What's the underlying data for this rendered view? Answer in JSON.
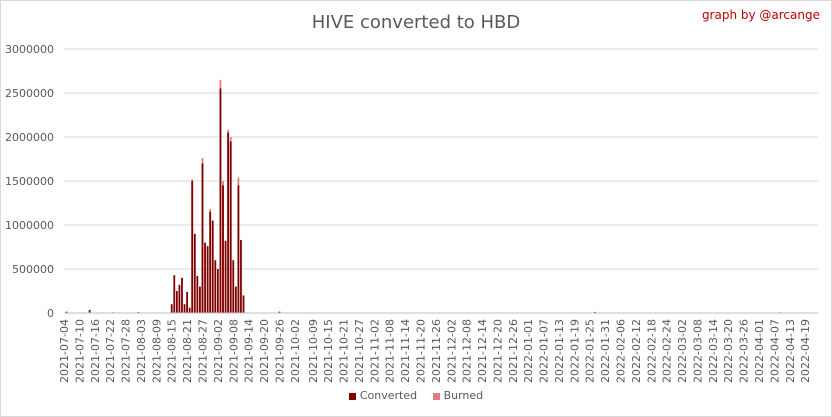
{
  "chart_data": {
    "type": "bar",
    "title": "HIVE converted to HBD",
    "credit": "graph by @arcange",
    "xlabel": "",
    "ylabel": "",
    "ylim": [
      0,
      3000000
    ],
    "yticks": [
      0,
      500000,
      1000000,
      1500000,
      2000000,
      2500000,
      3000000
    ],
    "grid": true,
    "legend_position": "bottom",
    "x_start": "2021-07-04",
    "x_end": "2022-04-24",
    "xtick_labels": [
      "2021-07-04",
      "2021-07-10",
      "2021-07-16",
      "2021-07-22",
      "2021-07-28",
      "2021-08-03",
      "2021-08-09",
      "2021-08-15",
      "2021-08-21",
      "2021-08-27",
      "2021-09-02",
      "2021-09-08",
      "2021-09-14",
      "2021-09-20",
      "2021-09-26",
      "2021-10-02",
      "2021-10-09",
      "2021-10-15",
      "2021-10-21",
      "2021-10-27",
      "2021-11-02",
      "2021-11-08",
      "2021-11-14",
      "2021-11-20",
      "2021-11-26",
      "2021-12-02",
      "2021-12-08",
      "2021-12-14",
      "2021-12-20",
      "2021-12-26",
      "2022-01-01",
      "2022-01-07",
      "2022-01-13",
      "2022-01-19",
      "2022-01-25",
      "2022-01-31",
      "2022-02-06",
      "2022-02-12",
      "2022-02-18",
      "2022-02-24",
      "2022-03-02",
      "2022-03-08",
      "2022-03-14",
      "2022-03-20",
      "2022-03-26",
      "2022-04-01",
      "2022-04-07",
      "2022-04-13",
      "2022-04-19"
    ],
    "series": [
      {
        "name": "Converted",
        "color": "#7f0000",
        "points": [
          [
            "2021-07-05",
            15000
          ],
          [
            "2021-07-14",
            35000
          ],
          [
            "2021-07-23",
            8000
          ],
          [
            "2021-08-02",
            10000
          ],
          [
            "2021-08-15",
            100000
          ],
          [
            "2021-08-16",
            430000
          ],
          [
            "2021-08-17",
            250000
          ],
          [
            "2021-08-18",
            320000
          ],
          [
            "2021-08-19",
            400000
          ],
          [
            "2021-08-20",
            100000
          ],
          [
            "2021-08-21",
            240000
          ],
          [
            "2021-08-22",
            60000
          ],
          [
            "2021-08-23",
            1500000
          ],
          [
            "2021-08-24",
            900000
          ],
          [
            "2021-08-25",
            420000
          ],
          [
            "2021-08-26",
            300000
          ],
          [
            "2021-08-27",
            1700000
          ],
          [
            "2021-08-28",
            800000
          ],
          [
            "2021-08-29",
            760000
          ],
          [
            "2021-08-30",
            1150000
          ],
          [
            "2021-08-31",
            1050000
          ],
          [
            "2021-09-01",
            600000
          ],
          [
            "2021-09-02",
            500000
          ],
          [
            "2021-09-03",
            2550000
          ],
          [
            "2021-09-04",
            1450000
          ],
          [
            "2021-09-05",
            820000
          ],
          [
            "2021-09-06",
            2050000
          ],
          [
            "2021-09-07",
            1950000
          ],
          [
            "2021-09-08",
            600000
          ],
          [
            "2021-09-09",
            300000
          ],
          [
            "2021-09-10",
            1450000
          ],
          [
            "2021-09-11",
            830000
          ],
          [
            "2021-09-12",
            200000
          ],
          [
            "2021-09-26",
            15000
          ],
          [
            "2022-01-27",
            12000
          ],
          [
            "2022-04-09",
            8000
          ]
        ]
      },
      {
        "name": "Burned",
        "color": "#e07c7c",
        "points": [
          [
            "2021-08-23",
            1520000
          ],
          [
            "2021-08-27",
            1760000
          ],
          [
            "2021-09-03",
            2650000
          ],
          [
            "2021-09-06",
            2080000
          ],
          [
            "2021-09-07",
            2000000
          ],
          [
            "2021-09-10",
            1540000
          ],
          [
            "2021-09-04",
            1500000
          ],
          [
            "2021-08-30",
            1180000
          ]
        ]
      }
    ]
  }
}
